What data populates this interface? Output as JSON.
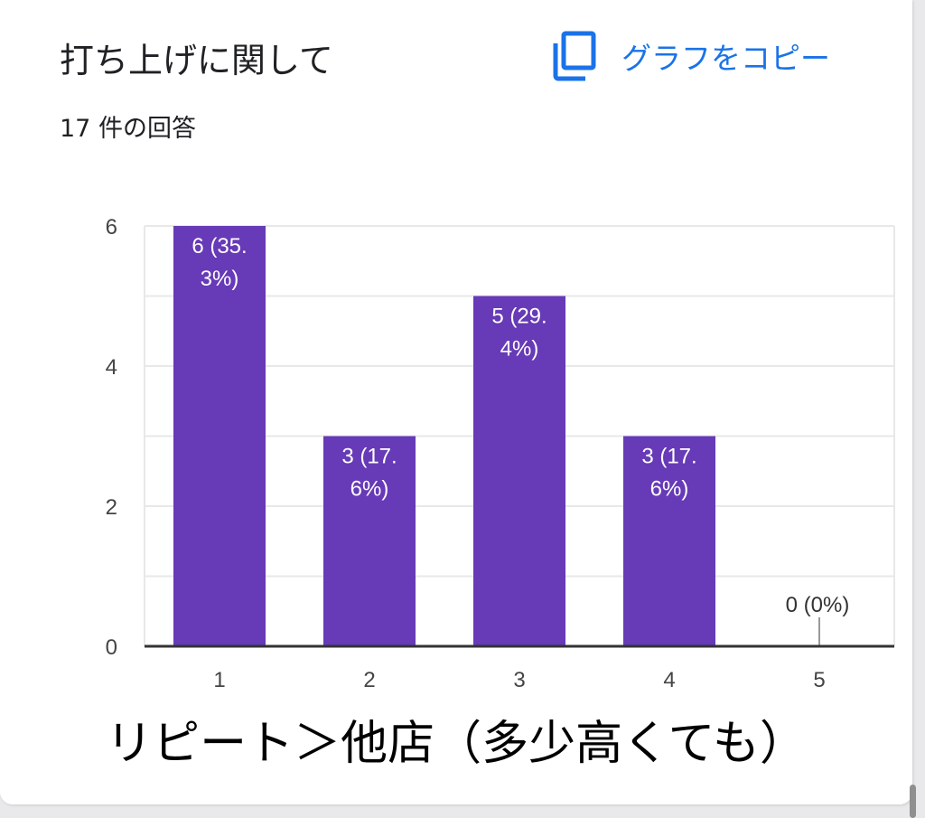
{
  "header": {
    "title": "打ち上げに関して",
    "copy_button_label": "グラフをコピー",
    "copy_icon": "copy-icon",
    "response_count": "17 件の回答"
  },
  "colors": {
    "bar": "#673ab7",
    "accent": "#1a73e8",
    "grid": "#e8e8e8",
    "axis": "#333333"
  },
  "chart_data": {
    "type": "bar",
    "categories": [
      "1",
      "2",
      "3",
      "4",
      "5"
    ],
    "values": [
      6,
      3,
      5,
      3,
      0
    ],
    "data_labels": [
      [
        "6 (35.",
        "3%)"
      ],
      [
        "3 (17.",
        "6%)"
      ],
      [
        "5 (29.",
        "4%)"
      ],
      [
        "3 (17.",
        "6%)"
      ],
      [
        "0 (0%)"
      ]
    ],
    "yticks": [
      "0",
      "2",
      "4",
      "6"
    ],
    "ylim": [
      0,
      6
    ],
    "grid": true,
    "title": "",
    "xlabel": "リピート＞他店（多少高くても）",
    "ylabel": ""
  }
}
